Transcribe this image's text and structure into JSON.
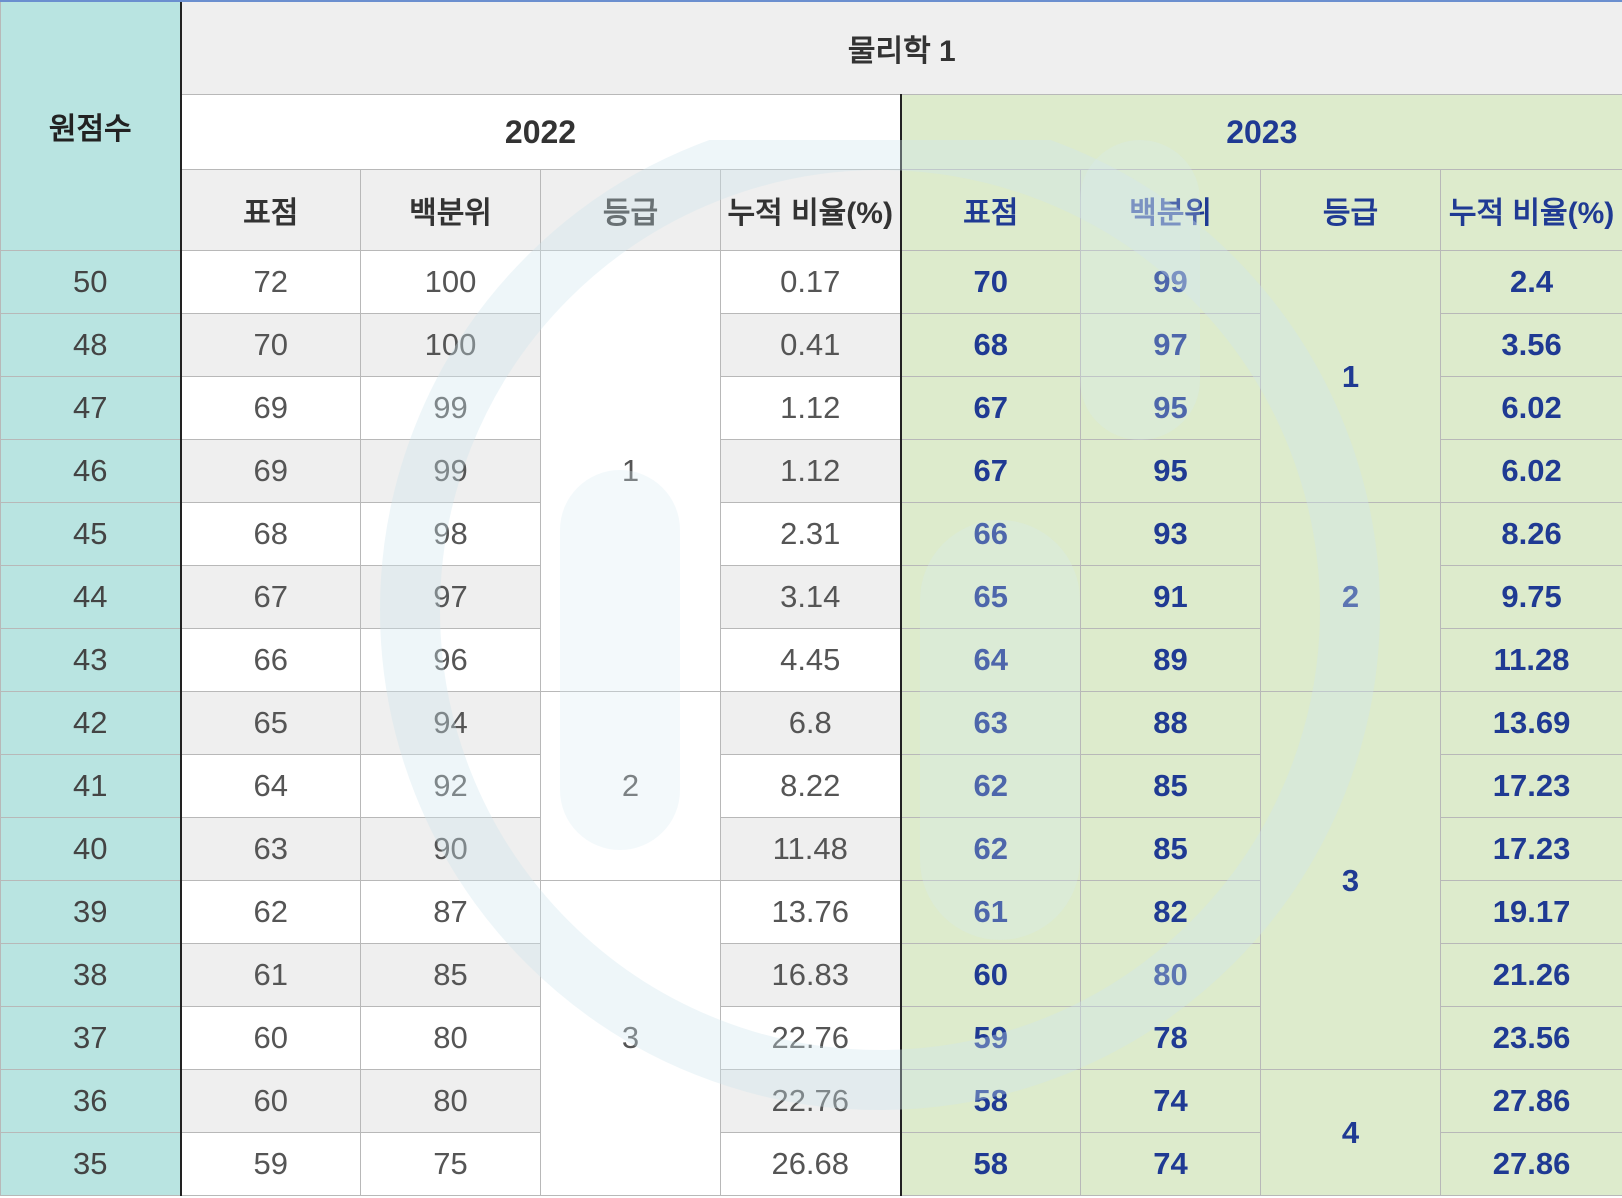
{
  "subject": "물리학 1",
  "header": {
    "raw_score": "원점수",
    "year_a": "2022",
    "year_b": "2023",
    "col_standard": "표점",
    "col_percentile": "백분위",
    "col_grade": "등급",
    "col_cumulative": "누적 비율(%)"
  },
  "rows": [
    {
      "raw": "50",
      "s22": "72",
      "p22": "100",
      "c22": "0.17",
      "s23": "70",
      "p23": "99",
      "c23": "2.4"
    },
    {
      "raw": "48",
      "s22": "70",
      "p22": "100",
      "c22": "0.41",
      "s23": "68",
      "p23": "97",
      "c23": "3.56"
    },
    {
      "raw": "47",
      "s22": "69",
      "p22": "99",
      "c22": "1.12",
      "s23": "67",
      "p23": "95",
      "c23": "6.02"
    },
    {
      "raw": "46",
      "s22": "69",
      "p22": "99",
      "c22": "1.12",
      "s23": "67",
      "p23": "95",
      "c23": "6.02"
    },
    {
      "raw": "45",
      "s22": "68",
      "p22": "98",
      "c22": "2.31",
      "s23": "66",
      "p23": "93",
      "c23": "8.26"
    },
    {
      "raw": "44",
      "s22": "67",
      "p22": "97",
      "c22": "3.14",
      "s23": "65",
      "p23": "91",
      "c23": "9.75"
    },
    {
      "raw": "43",
      "s22": "66",
      "p22": "96",
      "c22": "4.45",
      "s23": "64",
      "p23": "89",
      "c23": "11.28"
    },
    {
      "raw": "42",
      "s22": "65",
      "p22": "94",
      "c22": "6.8",
      "s23": "63",
      "p23": "88",
      "c23": "13.69"
    },
    {
      "raw": "41",
      "s22": "64",
      "p22": "92",
      "c22": "8.22",
      "s23": "62",
      "p23": "85",
      "c23": "17.23"
    },
    {
      "raw": "40",
      "s22": "63",
      "p22": "90",
      "c22": "11.48",
      "s23": "62",
      "p23": "85",
      "c23": "17.23"
    },
    {
      "raw": "39",
      "s22": "62",
      "p22": "87",
      "c22": "13.76",
      "s23": "61",
      "p23": "82",
      "c23": "19.17"
    },
    {
      "raw": "38",
      "s22": "61",
      "p22": "85",
      "c22": "16.83",
      "s23": "60",
      "p23": "80",
      "c23": "21.26"
    },
    {
      "raw": "37",
      "s22": "60",
      "p22": "80",
      "c22": "22.76",
      "s23": "59",
      "p23": "78",
      "c23": "23.56"
    },
    {
      "raw": "36",
      "s22": "60",
      "p22": "80",
      "c22": "22.76",
      "s23": "58",
      "p23": "74",
      "c23": "27.86"
    },
    {
      "raw": "35",
      "s22": "59",
      "p22": "75",
      "c22": "26.68",
      "s23": "58",
      "p23": "74",
      "c23": "27.86"
    }
  ],
  "grades_2022": [
    {
      "grade": "1",
      "span": 7
    },
    {
      "grade": "2",
      "span": 3
    },
    {
      "grade": "3",
      "span": 5
    }
  ],
  "grades_2023": [
    {
      "grade": "1",
      "span": 4
    },
    {
      "grade": "2",
      "span": 3
    },
    {
      "grade": "3",
      "span": 6
    },
    {
      "grade": "4",
      "span": 2
    }
  ],
  "colors": {
    "raw_column": "#b9e4e1",
    "year_2023_bg": "#ddebcc",
    "year_2023_text": "#1f3a93",
    "header_gray": "#efefef"
  }
}
